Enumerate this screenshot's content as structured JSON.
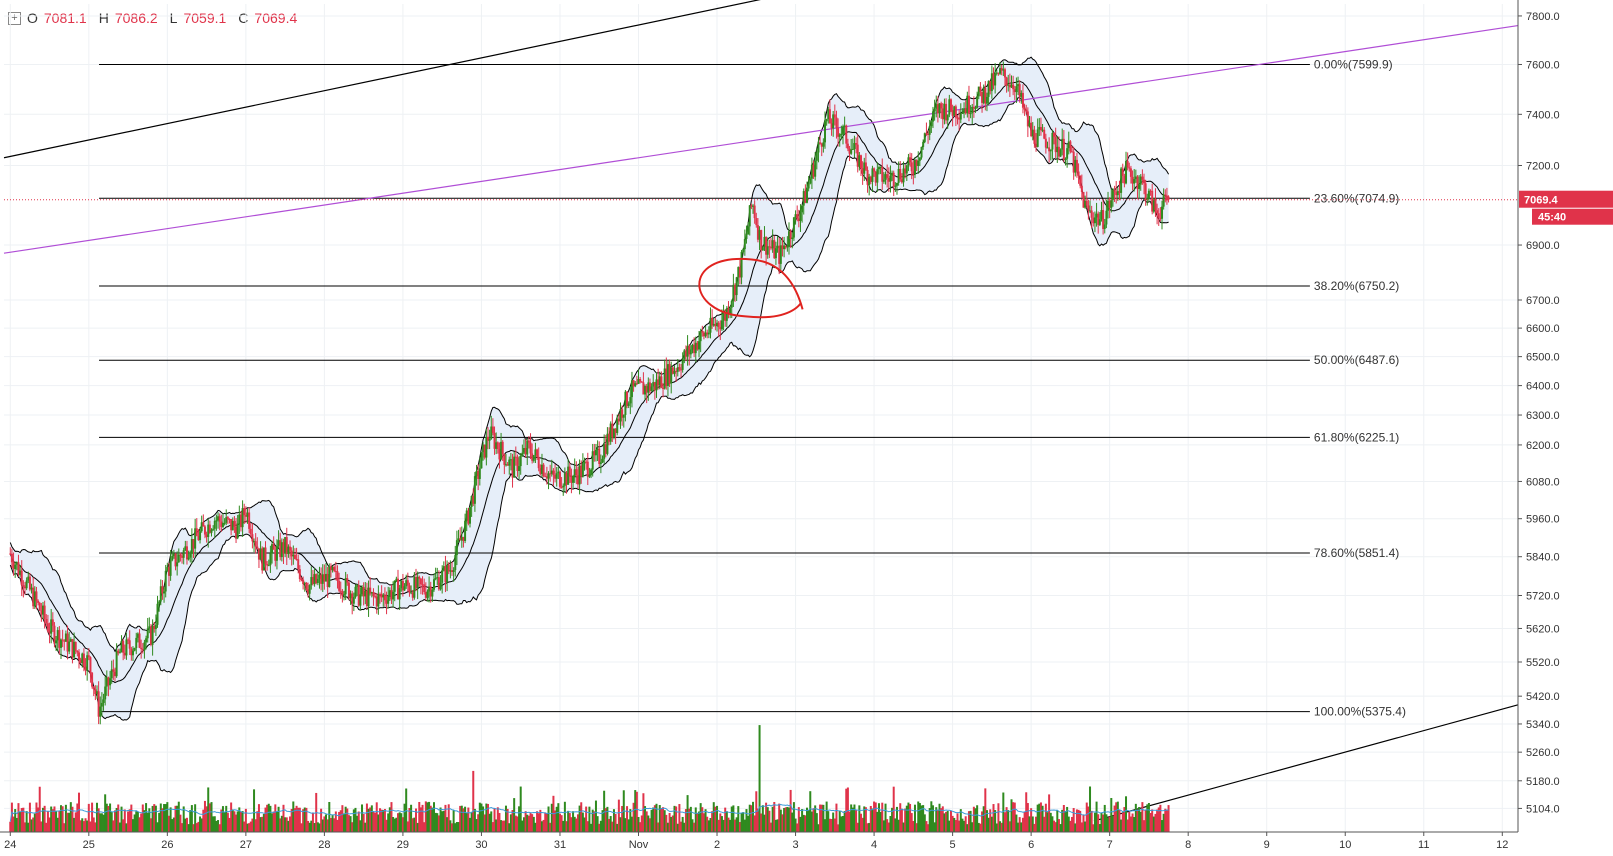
{
  "legend": {
    "open_label": "O",
    "open_value": "7081.1",
    "high_label": "H",
    "high_value": "7086.2",
    "low_label": "L",
    "low_value": "7059.1",
    "close_label": "C",
    "close_value": "7069.4"
  },
  "price_badge": {
    "price": "7069.4",
    "countdown": "45:40",
    "color": "#e0334a"
  },
  "colors": {
    "up": "#2f8a1f",
    "down": "#e0334a",
    "bb_fill": "#e6eef9",
    "purple": "#b04ed6",
    "volume_ma": "#3b9ad9"
  },
  "chart_data": {
    "type": "candlestick",
    "y_scale": "log",
    "ylim": [
      5040,
      7850
    ],
    "x_range_days": [
      -0.08,
      19.2
    ],
    "y_ticks": [
      "7800.0",
      "7600.0",
      "7400.0",
      "7200.0",
      "6900.0",
      "6700.0",
      "6600.0",
      "6500.0",
      "6400.0",
      "6300.0",
      "6200.0",
      "6080.0",
      "5960.0",
      "5840.0",
      "5720.0",
      "5620.0",
      "5520.0",
      "5420.0",
      "5340.0",
      "5260.0",
      "5180.0",
      "5104.0"
    ],
    "x_tick_labels": [
      "24",
      "25",
      "26",
      "27",
      "28",
      "29",
      "30",
      "31",
      "Nov",
      "2",
      "3",
      "4",
      "5",
      "6",
      "7",
      "8",
      "9",
      "10",
      "11",
      "12"
    ],
    "fibonacci": [
      {
        "label": "0.00%(7599.9)",
        "price": 7599.9
      },
      {
        "label": "23.60%(7074.9)",
        "price": 7074.9
      },
      {
        "label": "38.20%(6750.2)",
        "price": 6750.2
      },
      {
        "label": "50.00%(6487.6)",
        "price": 6487.6
      },
      {
        "label": "61.80%(6225.1)",
        "price": 6225.1
      },
      {
        "label": "78.60%(5851.4)",
        "price": 5851.4
      },
      {
        "label": "100.00%(5375.4)",
        "price": 5375.4
      }
    ],
    "fib_x_range_days": [
      1.13,
      16.55
    ],
    "trend_lines": [
      {
        "color": "#000000",
        "from": [
          -0.08,
          7230
        ],
        "to": [
          10.0,
          7900
        ]
      },
      {
        "color": "#b04ed6",
        "from": [
          -0.08,
          6870
        ],
        "to": [
          19.2,
          7760
        ]
      },
      {
        "color": "#000000",
        "from": [
          13.8,
          5070
        ],
        "to": [
          19.2,
          5395
        ]
      }
    ],
    "current_price": 7069.4,
    "anchors": [
      [
        0,
        5850
      ],
      [
        0.5,
        5620
      ],
      [
        1.0,
        5520
      ],
      [
        1.13,
        5380
      ],
      [
        1.4,
        5550
      ],
      [
        1.8,
        5600
      ],
      [
        2.0,
        5800
      ],
      [
        2.3,
        5880
      ],
      [
        2.6,
        5960
      ],
      [
        2.9,
        5930
      ],
      [
        3.0,
        5990
      ],
      [
        3.2,
        5830
      ],
      [
        3.5,
        5870
      ],
      [
        3.8,
        5750
      ],
      [
        4.1,
        5780
      ],
      [
        4.4,
        5720
      ],
      [
        4.7,
        5710
      ],
      [
        5.0,
        5750
      ],
      [
        5.3,
        5740
      ],
      [
        5.6,
        5800
      ],
      [
        5.8,
        5940
      ],
      [
        6.0,
        6150
      ],
      [
        6.1,
        6240
      ],
      [
        6.4,
        6120
      ],
      [
        6.6,
        6190
      ],
      [
        6.9,
        6090
      ],
      [
        7.2,
        6100
      ],
      [
        7.5,
        6160
      ],
      [
        7.7,
        6270
      ],
      [
        7.9,
        6380
      ],
      [
        8.2,
        6400
      ],
      [
        8.5,
        6470
      ],
      [
        8.8,
        6570
      ],
      [
        9.1,
        6640
      ],
      [
        9.3,
        6820
      ],
      [
        9.45,
        7060
      ],
      [
        9.55,
        6920
      ],
      [
        9.8,
        6860
      ],
      [
        10.1,
        7060
      ],
      [
        10.4,
        7380
      ],
      [
        10.6,
        7330
      ],
      [
        10.9,
        7170
      ],
      [
        11.2,
        7150
      ],
      [
        11.5,
        7200
      ],
      [
        11.8,
        7420
      ],
      [
        12.1,
        7420
      ],
      [
        12.4,
        7480
      ],
      [
        12.6,
        7560
      ],
      [
        12.8,
        7520
      ],
      [
        13.0,
        7320
      ],
      [
        13.2,
        7300
      ],
      [
        13.5,
        7250
      ],
      [
        13.7,
        7030
      ],
      [
        13.9,
        6990
      ],
      [
        14.2,
        7180
      ],
      [
        14.4,
        7140
      ],
      [
        14.6,
        7020
      ],
      [
        14.75,
        7069.4
      ]
    ],
    "volume_spikes": [
      [
        5.9,
        120
      ],
      [
        9.55,
        210
      ],
      [
        9.5,
        80
      ]
    ]
  }
}
